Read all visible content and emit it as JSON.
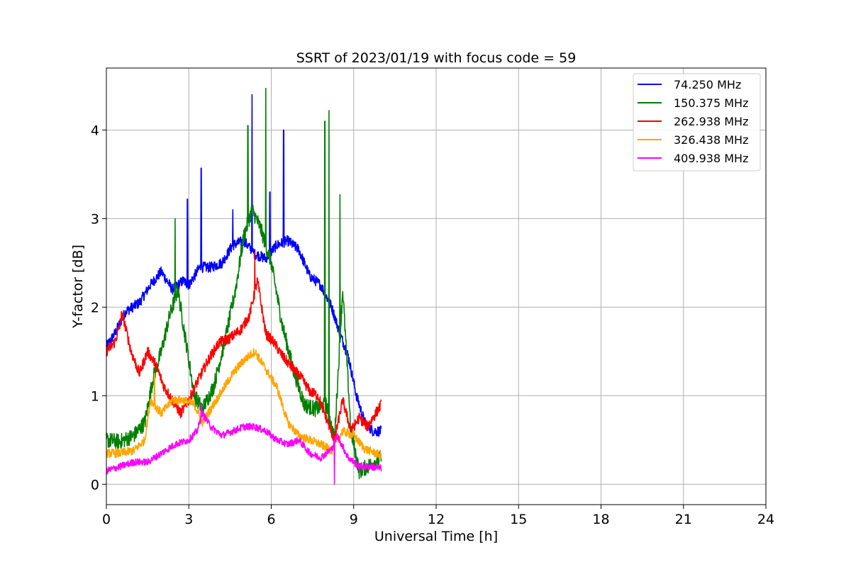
{
  "chart_data": {
    "type": "line",
    "title": "SSRT of 2023/01/19 with focus code = 59",
    "xlabel": "Universal Time [h]",
    "ylabel": "Y-factor [dB]",
    "xlim": [
      0,
      24
    ],
    "ylim": [
      -0.23,
      4.7
    ],
    "xticks": [
      0,
      3,
      6,
      9,
      12,
      15,
      18,
      21,
      24
    ],
    "yticks": [
      0,
      1,
      2,
      3,
      4
    ],
    "grid": true,
    "legend_position": "top-right",
    "series": [
      {
        "name": " 74.250 MHz",
        "color": "#0000ff",
        "noise": 0.06,
        "points": [
          [
            0,
            1.55
          ],
          [
            0.3,
            1.7
          ],
          [
            0.7,
            1.95
          ],
          [
            1.2,
            2.05
          ],
          [
            1.6,
            2.25
          ],
          [
            2.0,
            2.4
          ],
          [
            2.4,
            2.2
          ],
          [
            2.8,
            2.3
          ],
          [
            3.0,
            2.25
          ],
          [
            3.4,
            2.45
          ],
          [
            3.8,
            2.45
          ],
          [
            4.2,
            2.5
          ],
          [
            4.6,
            2.7
          ],
          [
            5.0,
            2.75
          ],
          [
            5.4,
            2.6
          ],
          [
            5.8,
            2.55
          ],
          [
            6.2,
            2.7
          ],
          [
            6.6,
            2.75
          ],
          [
            7.0,
            2.65
          ],
          [
            7.4,
            2.35
          ],
          [
            7.8,
            2.25
          ],
          [
            8.2,
            2.0
          ],
          [
            8.5,
            1.7
          ],
          [
            8.8,
            1.45
          ],
          [
            9.1,
            1.0
          ],
          [
            9.4,
            0.7
          ],
          [
            9.7,
            0.6
          ],
          [
            10.0,
            0.6
          ]
        ],
        "spikes": [
          [
            2.95,
            3.22
          ],
          [
            3.45,
            3.57
          ],
          [
            5.3,
            4.4
          ],
          [
            6.45,
            4.0
          ],
          [
            5.95,
            3.3
          ],
          [
            4.6,
            3.1
          ]
        ]
      },
      {
        "name": "150.375 MHz",
        "color": "#008000",
        "noise": 0.09,
        "points": [
          [
            0,
            0.5
          ],
          [
            0.5,
            0.48
          ],
          [
            1.0,
            0.55
          ],
          [
            1.4,
            0.7
          ],
          [
            1.7,
            1.2
          ],
          [
            2.0,
            1.5
          ],
          [
            2.3,
            1.9
          ],
          [
            2.6,
            2.2
          ],
          [
            2.9,
            1.6
          ],
          [
            3.2,
            1.0
          ],
          [
            3.5,
            0.85
          ],
          [
            3.9,
            1.1
          ],
          [
            4.3,
            1.6
          ],
          [
            4.7,
            2.2
          ],
          [
            5.0,
            2.8
          ],
          [
            5.3,
            3.1
          ],
          [
            5.6,
            2.9
          ],
          [
            6.0,
            2.5
          ],
          [
            6.4,
            1.8
          ],
          [
            6.8,
            1.3
          ],
          [
            7.2,
            0.9
          ],
          [
            7.6,
            0.85
          ],
          [
            8.0,
            0.9
          ],
          [
            8.3,
            0.5
          ],
          [
            8.6,
            2.2
          ],
          [
            8.9,
            0.6
          ],
          [
            9.2,
            0.15
          ],
          [
            9.5,
            0.2
          ],
          [
            10.0,
            0.3
          ]
        ],
        "spikes": [
          [
            5.8,
            4.47
          ],
          [
            8.1,
            4.22
          ],
          [
            7.95,
            4.1
          ],
          [
            5.15,
            4.05
          ],
          [
            8.5,
            3.27
          ],
          [
            2.5,
            3.0
          ]
        ]
      },
      {
        "name": "262.938 MHz",
        "color": "#ff0000",
        "noise": 0.06,
        "points": [
          [
            0,
            1.5
          ],
          [
            0.3,
            1.6
          ],
          [
            0.6,
            1.9
          ],
          [
            0.9,
            1.5
          ],
          [
            1.2,
            1.25
          ],
          [
            1.5,
            1.5
          ],
          [
            1.8,
            1.35
          ],
          [
            2.1,
            1.1
          ],
          [
            2.4,
            0.95
          ],
          [
            2.7,
            0.8
          ],
          [
            3.0,
            0.95
          ],
          [
            3.3,
            1.15
          ],
          [
            3.7,
            1.4
          ],
          [
            4.1,
            1.6
          ],
          [
            4.5,
            1.65
          ],
          [
            4.9,
            1.75
          ],
          [
            5.2,
            1.9
          ],
          [
            5.5,
            2.3
          ],
          [
            5.8,
            1.7
          ],
          [
            6.1,
            1.6
          ],
          [
            6.4,
            1.45
          ],
          [
            6.8,
            1.3
          ],
          [
            7.1,
            1.2
          ],
          [
            7.4,
            1.05
          ],
          [
            7.7,
            1.0
          ],
          [
            8.0,
            0.75
          ],
          [
            8.3,
            0.5
          ],
          [
            8.6,
            0.95
          ],
          [
            8.9,
            0.6
          ],
          [
            9.2,
            0.75
          ],
          [
            9.5,
            0.65
          ],
          [
            9.8,
            0.8
          ],
          [
            10.0,
            0.9
          ]
        ],
        "spikes": [
          [
            5.4,
            2.62
          ],
          [
            0.55,
            1.95
          ]
        ]
      },
      {
        "name": "326.438 MHz",
        "color": "#ffa500",
        "noise": 0.05,
        "points": [
          [
            0,
            0.35
          ],
          [
            0.5,
            0.35
          ],
          [
            1.0,
            0.38
          ],
          [
            1.4,
            0.5
          ],
          [
            1.6,
            0.95
          ],
          [
            2.0,
            0.8
          ],
          [
            2.4,
            0.95
          ],
          [
            2.8,
            0.95
          ],
          [
            3.2,
            0.9
          ],
          [
            3.5,
            0.7
          ],
          [
            3.8,
            0.85
          ],
          [
            4.2,
            1.05
          ],
          [
            4.6,
            1.25
          ],
          [
            5.0,
            1.4
          ],
          [
            5.4,
            1.5
          ],
          [
            5.8,
            1.3
          ],
          [
            6.2,
            1.1
          ],
          [
            6.6,
            0.7
          ],
          [
            7.0,
            0.55
          ],
          [
            7.4,
            0.5
          ],
          [
            7.8,
            0.45
          ],
          [
            8.2,
            0.38
          ],
          [
            8.6,
            0.6
          ],
          [
            9.0,
            0.55
          ],
          [
            9.4,
            0.4
          ],
          [
            9.8,
            0.35
          ],
          [
            10.0,
            0.32
          ]
        ],
        "spikes": [
          [
            1.75,
            1.25
          ]
        ]
      },
      {
        "name": "409.938 MHz",
        "color": "#ff00ff",
        "noise": 0.04,
        "points": [
          [
            0,
            0.15
          ],
          [
            0.5,
            0.2
          ],
          [
            1.0,
            0.25
          ],
          [
            1.5,
            0.25
          ],
          [
            2.0,
            0.35
          ],
          [
            2.5,
            0.45
          ],
          [
            3.0,
            0.5
          ],
          [
            3.3,
            0.6
          ],
          [
            3.5,
            0.8
          ],
          [
            3.8,
            0.65
          ],
          [
            4.2,
            0.55
          ],
          [
            4.6,
            0.6
          ],
          [
            5.0,
            0.65
          ],
          [
            5.4,
            0.65
          ],
          [
            5.8,
            0.6
          ],
          [
            6.2,
            0.5
          ],
          [
            6.6,
            0.45
          ],
          [
            7.0,
            0.5
          ],
          [
            7.4,
            0.35
          ],
          [
            7.8,
            0.3
          ],
          [
            8.2,
            0.4
          ],
          [
            8.4,
            0.55
          ],
          [
            8.8,
            0.3
          ],
          [
            9.2,
            0.2
          ],
          [
            9.6,
            0.2
          ],
          [
            10.0,
            0.18
          ]
        ],
        "spikes": [
          [
            8.3,
            0.0
          ],
          [
            3.45,
            0.9
          ]
        ]
      }
    ]
  }
}
